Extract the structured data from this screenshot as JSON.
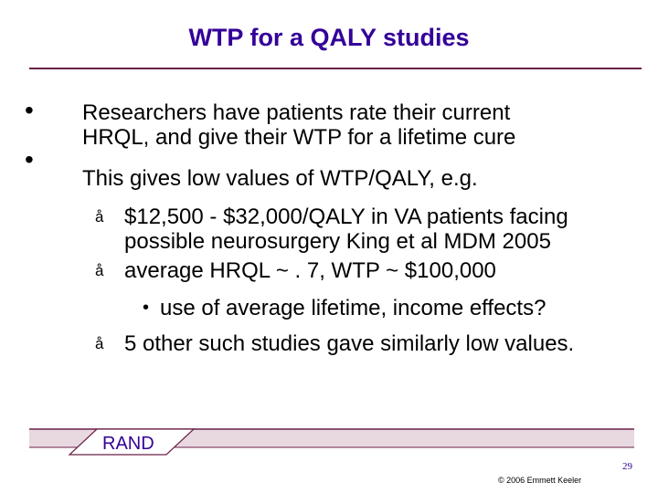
{
  "slide": {
    "title": "WTP for a QALY studies",
    "bullets": [
      {
        "marker": "•",
        "lines": [
          "Researchers have patients rate their current",
          "HRQL, and give their WTP for a lifetime cure"
        ]
      },
      {
        "marker": "•",
        "lines": [
          "This gives low values of WTP/QALY, e.g."
        ]
      }
    ],
    "subbullets": [
      {
        "marker": "å",
        "lines": [
          "$12,500 - $32,000/QALY in VA patients facing",
          "possible neurosurgery  King et al MDM 2005"
        ]
      },
      {
        "marker": "å",
        "lines": [
          "average HRQL ~ . 7, WTP ~ $100,000"
        ]
      },
      {
        "marker": "•",
        "lines": [
          "use of average lifetime, income effects?"
        ]
      },
      {
        "marker": "å",
        "lines": [
          "5 other such studies gave similarly low values."
        ]
      }
    ]
  },
  "footer": {
    "logo_text": "RAND",
    "page_number": "29",
    "copyright": "© 2006  Emmett Keeler"
  },
  "colors": {
    "title": "#330099",
    "rule": "#6b2048",
    "footer_band": "#e8d8e0"
  }
}
